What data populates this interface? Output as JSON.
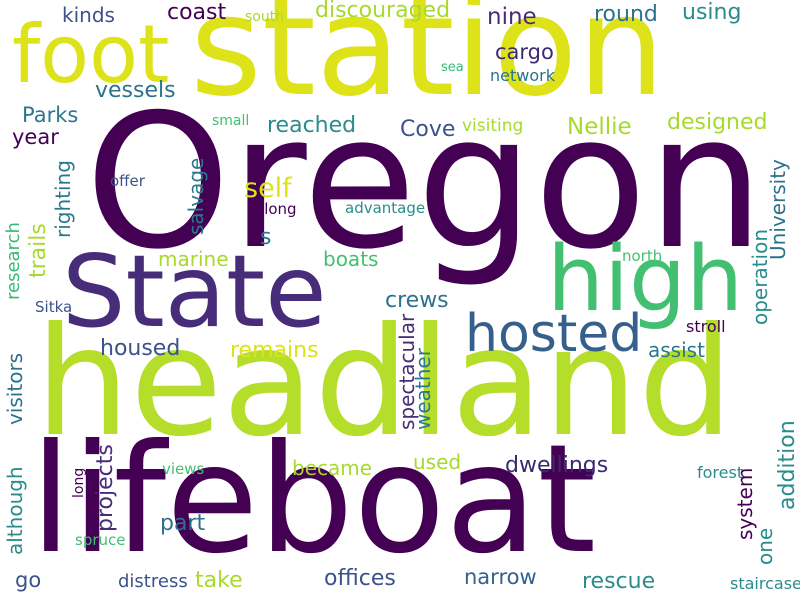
{
  "palette": {
    "dark_purple": "#440154",
    "indigo": "#3b2a72",
    "blue": "#355f8d",
    "teal": "#2a8c8c",
    "green": "#43bf71",
    "yellow_green": "#a8d92d",
    "yellow": "#dde318"
  },
  "words": [
    {
      "text": "Oregon"
    },
    {
      "text": "station"
    },
    {
      "text": "headland"
    },
    {
      "text": "lifeboat"
    },
    {
      "text": "State"
    },
    {
      "text": "foot"
    },
    {
      "text": "high"
    },
    {
      "text": "hosted"
    },
    {
      "text": "kinds"
    },
    {
      "text": "coast"
    },
    {
      "text": "south"
    },
    {
      "text": "discouraged"
    },
    {
      "text": "nine"
    },
    {
      "text": "round"
    },
    {
      "text": "using"
    },
    {
      "text": "cargo"
    },
    {
      "text": "sea"
    },
    {
      "text": "network"
    },
    {
      "text": "vessels"
    },
    {
      "text": "Parks"
    },
    {
      "text": "small"
    },
    {
      "text": "reached"
    },
    {
      "text": "Cove"
    },
    {
      "text": "visiting"
    },
    {
      "text": "Nellie"
    },
    {
      "text": "designed"
    },
    {
      "text": "year"
    },
    {
      "text": "offer"
    },
    {
      "text": "self"
    },
    {
      "text": "along"
    },
    {
      "text": "advantage"
    },
    {
      "text": "s"
    },
    {
      "text": "marine"
    },
    {
      "text": "boats"
    },
    {
      "text": "north"
    },
    {
      "text": "Sitka"
    },
    {
      "text": "crews"
    },
    {
      "text": "stroll"
    },
    {
      "text": "housed"
    },
    {
      "text": "remains"
    },
    {
      "text": "assist"
    },
    {
      "text": "became"
    },
    {
      "text": "used"
    },
    {
      "text": "dwellings"
    },
    {
      "text": "views"
    },
    {
      "text": "forest"
    },
    {
      "text": "part"
    },
    {
      "text": "spruce"
    },
    {
      "text": "go"
    },
    {
      "text": "distress"
    },
    {
      "text": "take"
    },
    {
      "text": "offices"
    },
    {
      "text": "narrow"
    },
    {
      "text": "rescue"
    },
    {
      "text": "staircase"
    },
    {
      "text": "trails"
    },
    {
      "text": "righting"
    },
    {
      "text": "salvage"
    },
    {
      "text": "research"
    },
    {
      "text": "visitors"
    },
    {
      "text": "although"
    },
    {
      "text": "projects"
    },
    {
      "text": "long"
    },
    {
      "text": "spectacular"
    },
    {
      "text": "weather"
    },
    {
      "text": "system"
    },
    {
      "text": "one"
    },
    {
      "text": "University"
    },
    {
      "text": "operation"
    },
    {
      "text": "addition"
    }
  ]
}
